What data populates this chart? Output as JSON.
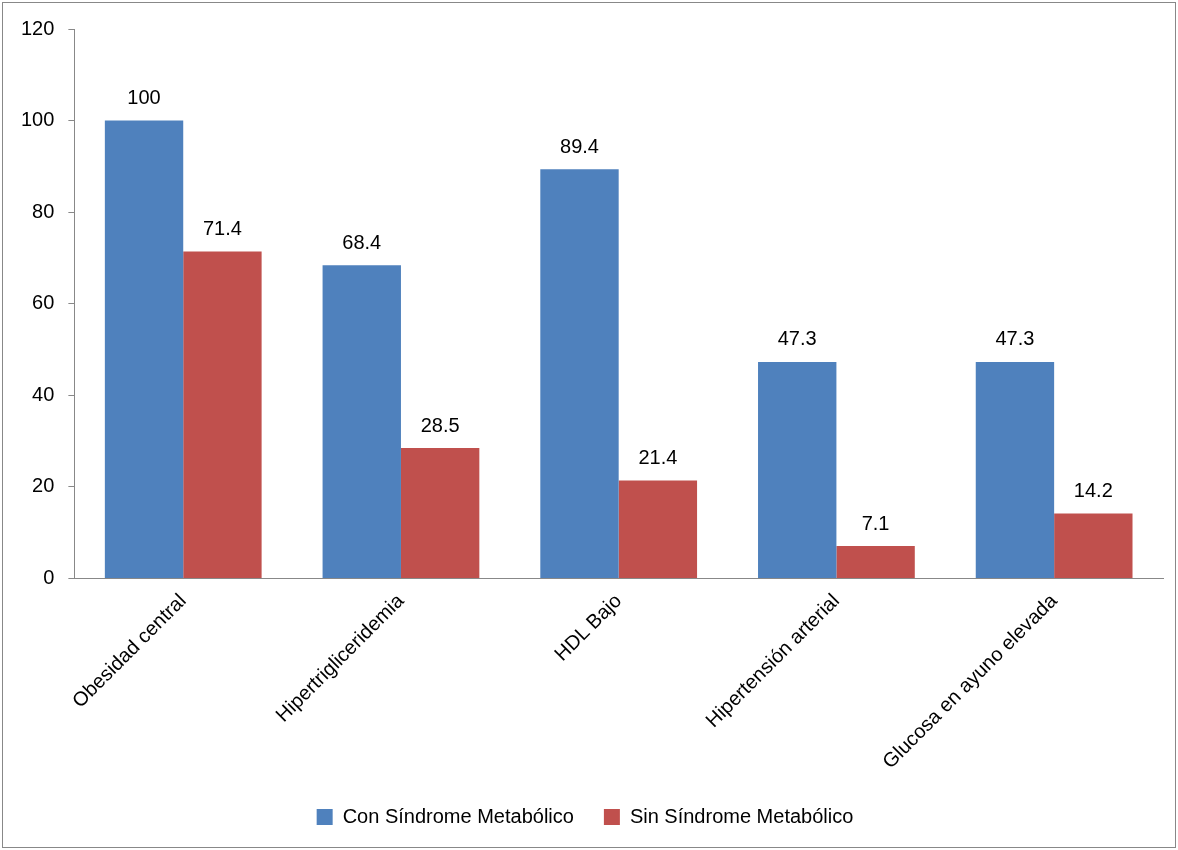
{
  "chart_data": {
    "type": "bar",
    "categories": [
      "Obesidad central",
      "Hipertrigliceridemia",
      "HDL Bajo",
      "Hipertensión arterial",
      "Glucosa en ayuno elevada"
    ],
    "series": [
      {
        "name": "Con Síndrome Metabólico",
        "color": "#4f81bd",
        "values": [
          100,
          68.4,
          89.4,
          47.3,
          47.3
        ]
      },
      {
        "name": "Sin Síndrome Metabólico",
        "color": "#c0504d",
        "values": [
          71.4,
          28.5,
          21.4,
          7.1,
          14.2
        ]
      }
    ],
    "ylim": [
      0,
      120
    ],
    "yticks": [
      0,
      20,
      40,
      60,
      80,
      100,
      120
    ],
    "grid": false,
    "legend": "bottom",
    "data_labels": true
  }
}
